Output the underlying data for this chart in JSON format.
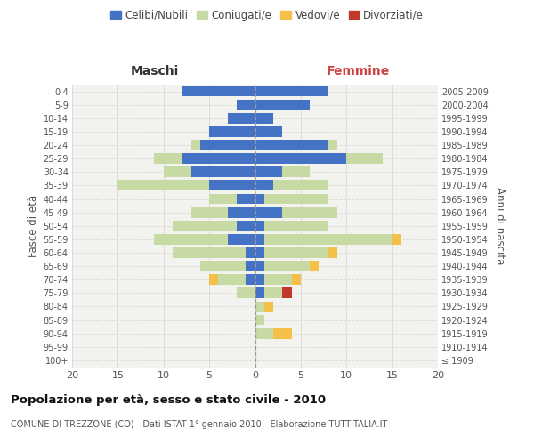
{
  "age_groups": [
    "100+",
    "95-99",
    "90-94",
    "85-89",
    "80-84",
    "75-79",
    "70-74",
    "65-69",
    "60-64",
    "55-59",
    "50-54",
    "45-49",
    "40-44",
    "35-39",
    "30-34",
    "25-29",
    "20-24",
    "15-19",
    "10-14",
    "5-9",
    "0-4"
  ],
  "birth_years": [
    "≤ 1909",
    "1910-1914",
    "1915-1919",
    "1920-1924",
    "1925-1929",
    "1930-1934",
    "1935-1939",
    "1940-1944",
    "1945-1949",
    "1950-1954",
    "1955-1959",
    "1960-1964",
    "1965-1969",
    "1970-1974",
    "1975-1979",
    "1980-1984",
    "1985-1989",
    "1990-1994",
    "1995-1999",
    "2000-2004",
    "2005-2009"
  ],
  "male": {
    "celibi": [
      0,
      0,
      0,
      0,
      0,
      0,
      1,
      1,
      1,
      3,
      2,
      3,
      2,
      5,
      7,
      8,
      6,
      5,
      3,
      2,
      8
    ],
    "coniugati": [
      0,
      0,
      0,
      0,
      0,
      2,
      3,
      5,
      8,
      8,
      7,
      4,
      3,
      10,
      3,
      3,
      1,
      0,
      0,
      0,
      0
    ],
    "vedovi": [
      0,
      0,
      0,
      0,
      0,
      0,
      1,
      0,
      0,
      0,
      0,
      0,
      0,
      0,
      0,
      0,
      0,
      0,
      0,
      0,
      0
    ],
    "divorziati": [
      0,
      0,
      0,
      0,
      0,
      0,
      0,
      0,
      0,
      0,
      0,
      0,
      0,
      0,
      0,
      0,
      0,
      0,
      0,
      0,
      0
    ]
  },
  "female": {
    "nubili": [
      0,
      0,
      0,
      0,
      0,
      1,
      1,
      1,
      1,
      1,
      1,
      3,
      1,
      2,
      3,
      10,
      8,
      3,
      2,
      6,
      8
    ],
    "coniugate": [
      0,
      0,
      2,
      1,
      1,
      2,
      3,
      5,
      7,
      14,
      7,
      6,
      7,
      6,
      3,
      4,
      1,
      0,
      0,
      0,
      0
    ],
    "vedove": [
      0,
      0,
      2,
      0,
      1,
      0,
      1,
      1,
      1,
      1,
      0,
      0,
      0,
      0,
      0,
      0,
      0,
      0,
      0,
      0,
      0
    ],
    "divorziate": [
      0,
      0,
      0,
      0,
      0,
      1,
      0,
      0,
      0,
      0,
      0,
      0,
      0,
      0,
      0,
      0,
      0,
      0,
      0,
      0,
      0
    ]
  },
  "color_celibi": "#4472c4",
  "color_coniugati": "#c8daa4",
  "color_vedovi": "#f5c04a",
  "color_divorziati": "#c0392b",
  "xlim": 20,
  "title": "Popolazione per età, sesso e stato civile - 2010",
  "subtitle": "COMUNE DI TREZZONE (CO) - Dati ISTAT 1° gennaio 2010 - Elaborazione TUTTITALIA.IT",
  "ylabel_left": "Fasce di età",
  "ylabel_right": "Anni di nascita",
  "xlabel_left": "Maschi",
  "xlabel_right": "Femmine",
  "bg_color": "#ffffff",
  "plot_bg_color": "#f2f2ee",
  "grid_color": "#d8d8d8"
}
